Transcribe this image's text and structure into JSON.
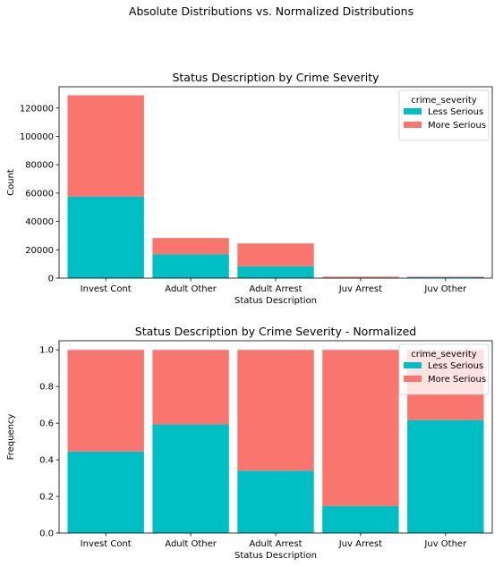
{
  "figure": {
    "suptitle": "Absolute Distributions vs. Normalized Distributions"
  },
  "legend": {
    "title": "crime_severity",
    "items": [
      {
        "label": "Less Serious",
        "color": "#00BFC4"
      },
      {
        "label": "More Serious",
        "color": "#F8766D"
      }
    ]
  },
  "chart_data": [
    {
      "type": "bar",
      "stacked": true,
      "title": "Status Description by Crime Severity",
      "xlabel": "Status Description",
      "ylabel": "Count",
      "categories": [
        "Invest Cont",
        "Adult Other",
        "Adult Arrest",
        "Juv Arrest",
        "Juv Other"
      ],
      "series": [
        {
          "name": "Less Serious",
          "color": "#00BFC4",
          "values": [
            57500,
            16800,
            8300,
            150,
            600
          ]
        },
        {
          "name": "More Serious",
          "color": "#F8766D",
          "values": [
            71500,
            11500,
            16200,
            850,
            400
          ]
        }
      ],
      "ylim": [
        0,
        135000
      ],
      "yticks": [
        0,
        20000,
        40000,
        60000,
        80000,
        100000,
        120000
      ],
      "grid": false,
      "legend": "top-right"
    },
    {
      "type": "bar",
      "stacked": true,
      "title": "Status Description by Crime Severity - Normalized",
      "xlabel": "Status Description",
      "ylabel": "Frequency",
      "categories": [
        "Invest Cont",
        "Adult Other",
        "Adult Arrest",
        "Juv Arrest",
        "Juv Other"
      ],
      "series": [
        {
          "name": "Less Serious",
          "color": "#00BFC4",
          "values": [
            0.445,
            0.593,
            0.34,
            0.147,
            0.617
          ]
        },
        {
          "name": "More Serious",
          "color": "#F8766D",
          "values": [
            0.555,
            0.407,
            0.66,
            0.853,
            0.383
          ]
        }
      ],
      "ylim": [
        0,
        1.05
      ],
      "yticks": [
        "0.0",
        "0.2",
        "0.4",
        "0.6",
        "0.8",
        "1.0"
      ],
      "grid": false,
      "legend": "top-right"
    }
  ]
}
